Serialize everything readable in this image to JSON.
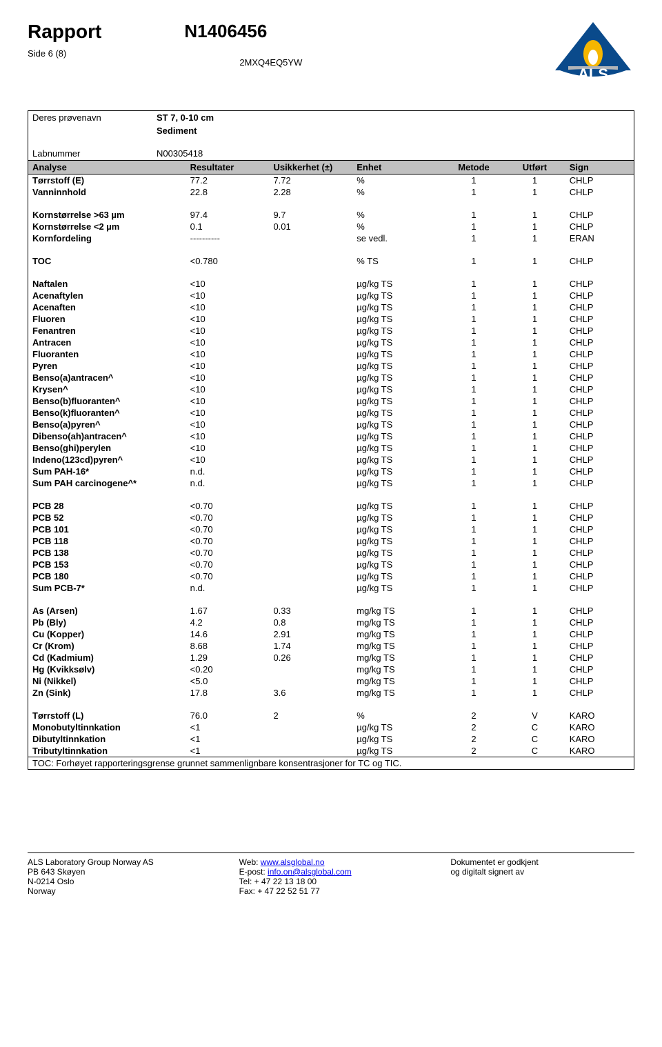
{
  "header": {
    "title": "Rapport",
    "page_info": "Side 6 (8)",
    "report_no": "N1406456",
    "ref_code": "2MXQ4EQ5YW"
  },
  "logo": {
    "name": "ALS",
    "triangle_color": "#0a4a8b",
    "flame_outer": "#f5b600",
    "flame_inner": "#ffffff",
    "text_color": "#0a4a8b"
  },
  "meta": {
    "sample_name_label": "Deres prøvenavn",
    "sample_name_value": "ST 7, 0-10 cm",
    "matrix_value": "Sediment",
    "labno_label": "Labnummer",
    "labno_value": "N00305418"
  },
  "columns": {
    "analyse": "Analyse",
    "resultater": "Resultater",
    "usikkerhet": "Usikkerhet (±)",
    "enhet": "Enhet",
    "metode": "Metode",
    "utfort": "Utført",
    "sign": "Sign"
  },
  "groups": [
    {
      "rows": [
        {
          "param": "Tørrstoff (E)",
          "result": "77.2",
          "uncert": "7.72",
          "unit": "%",
          "method": "1",
          "utfort": "1",
          "sign": "CHLP"
        },
        {
          "param": "Vanninnhold",
          "result": "22.8",
          "uncert": "2.28",
          "unit": "%",
          "method": "1",
          "utfort": "1",
          "sign": "CHLP"
        }
      ]
    },
    {
      "rows": [
        {
          "param": "Kornstørrelse >63 µm",
          "result": "97.4",
          "uncert": "9.7",
          "unit": "%",
          "method": "1",
          "utfort": "1",
          "sign": "CHLP"
        },
        {
          "param": "Kornstørrelse <2 µm",
          "result": "0.1",
          "uncert": "0.01",
          "unit": "%",
          "method": "1",
          "utfort": "1",
          "sign": "CHLP"
        },
        {
          "param": "Kornfordeling",
          "result": "----------",
          "uncert": "",
          "unit": "se vedl.",
          "method": "1",
          "utfort": "1",
          "sign": "ERAN"
        }
      ]
    },
    {
      "rows": [
        {
          "param": "TOC",
          "result": "<0.780",
          "uncert": "",
          "unit": "% TS",
          "method": "1",
          "utfort": "1",
          "sign": "CHLP"
        }
      ]
    },
    {
      "rows": [
        {
          "param": "Naftalen",
          "result": "<10",
          "uncert": "",
          "unit": "µg/kg TS",
          "method": "1",
          "utfort": "1",
          "sign": "CHLP"
        },
        {
          "param": "Acenaftylen",
          "result": "<10",
          "uncert": "",
          "unit": "µg/kg TS",
          "method": "1",
          "utfort": "1",
          "sign": "CHLP"
        },
        {
          "param": "Acenaften",
          "result": "<10",
          "uncert": "",
          "unit": "µg/kg TS",
          "method": "1",
          "utfort": "1",
          "sign": "CHLP"
        },
        {
          "param": "Fluoren",
          "result": "<10",
          "uncert": "",
          "unit": "µg/kg TS",
          "method": "1",
          "utfort": "1",
          "sign": "CHLP"
        },
        {
          "param": "Fenantren",
          "result": "<10",
          "uncert": "",
          "unit": "µg/kg TS",
          "method": "1",
          "utfort": "1",
          "sign": "CHLP"
        },
        {
          "param": "Antracen",
          "result": "<10",
          "uncert": "",
          "unit": "µg/kg TS",
          "method": "1",
          "utfort": "1",
          "sign": "CHLP"
        },
        {
          "param": "Fluoranten",
          "result": "<10",
          "uncert": "",
          "unit": "µg/kg TS",
          "method": "1",
          "utfort": "1",
          "sign": "CHLP"
        },
        {
          "param": "Pyren",
          "result": "<10",
          "uncert": "",
          "unit": "µg/kg TS",
          "method": "1",
          "utfort": "1",
          "sign": "CHLP"
        },
        {
          "param": "Benso(a)antracen^",
          "result": "<10",
          "uncert": "",
          "unit": "µg/kg TS",
          "method": "1",
          "utfort": "1",
          "sign": "CHLP"
        },
        {
          "param": "Krysen^",
          "result": "<10",
          "uncert": "",
          "unit": "µg/kg TS",
          "method": "1",
          "utfort": "1",
          "sign": "CHLP"
        },
        {
          "param": "Benso(b)fluoranten^",
          "result": "<10",
          "uncert": "",
          "unit": "µg/kg TS",
          "method": "1",
          "utfort": "1",
          "sign": "CHLP"
        },
        {
          "param": "Benso(k)fluoranten^",
          "result": "<10",
          "uncert": "",
          "unit": "µg/kg TS",
          "method": "1",
          "utfort": "1",
          "sign": "CHLP"
        },
        {
          "param": "Benso(a)pyren^",
          "result": "<10",
          "uncert": "",
          "unit": "µg/kg TS",
          "method": "1",
          "utfort": "1",
          "sign": "CHLP"
        },
        {
          "param": "Dibenso(ah)antracen^",
          "result": "<10",
          "uncert": "",
          "unit": "µg/kg TS",
          "method": "1",
          "utfort": "1",
          "sign": "CHLP"
        },
        {
          "param": "Benso(ghi)perylen",
          "result": "<10",
          "uncert": "",
          "unit": "µg/kg TS",
          "method": "1",
          "utfort": "1",
          "sign": "CHLP"
        },
        {
          "param": "Indeno(123cd)pyren^",
          "result": "<10",
          "uncert": "",
          "unit": "µg/kg TS",
          "method": "1",
          "utfort": "1",
          "sign": "CHLP"
        },
        {
          "param": "Sum PAH-16*",
          "result": "n.d.",
          "uncert": "",
          "unit": "µg/kg TS",
          "method": "1",
          "utfort": "1",
          "sign": "CHLP"
        },
        {
          "param": "Sum PAH carcinogene^*",
          "result": "n.d.",
          "uncert": "",
          "unit": "µg/kg TS",
          "method": "1",
          "utfort": "1",
          "sign": "CHLP"
        }
      ]
    },
    {
      "rows": [
        {
          "param": "PCB 28",
          "result": "<0.70",
          "uncert": "",
          "unit": "µg/kg TS",
          "method": "1",
          "utfort": "1",
          "sign": "CHLP"
        },
        {
          "param": "PCB 52",
          "result": "<0.70",
          "uncert": "",
          "unit": "µg/kg TS",
          "method": "1",
          "utfort": "1",
          "sign": "CHLP"
        },
        {
          "param": "PCB 101",
          "result": "<0.70",
          "uncert": "",
          "unit": "µg/kg TS",
          "method": "1",
          "utfort": "1",
          "sign": "CHLP"
        },
        {
          "param": "PCB 118",
          "result": "<0.70",
          "uncert": "",
          "unit": "µg/kg TS",
          "method": "1",
          "utfort": "1",
          "sign": "CHLP"
        },
        {
          "param": "PCB 138",
          "result": "<0.70",
          "uncert": "",
          "unit": "µg/kg TS",
          "method": "1",
          "utfort": "1",
          "sign": "CHLP"
        },
        {
          "param": "PCB 153",
          "result": "<0.70",
          "uncert": "",
          "unit": "µg/kg TS",
          "method": "1",
          "utfort": "1",
          "sign": "CHLP"
        },
        {
          "param": "PCB 180",
          "result": "<0.70",
          "uncert": "",
          "unit": "µg/kg TS",
          "method": "1",
          "utfort": "1",
          "sign": "CHLP"
        },
        {
          "param": "Sum PCB-7*",
          "result": "n.d.",
          "uncert": "",
          "unit": "µg/kg TS",
          "method": "1",
          "utfort": "1",
          "sign": "CHLP"
        }
      ]
    },
    {
      "rows": [
        {
          "param": "As (Arsen)",
          "result": "1.67",
          "uncert": "0.33",
          "unit": "mg/kg TS",
          "method": "1",
          "utfort": "1",
          "sign": "CHLP"
        },
        {
          "param": "Pb (Bly)",
          "result": "4.2",
          "uncert": "0.8",
          "unit": "mg/kg TS",
          "method": "1",
          "utfort": "1",
          "sign": "CHLP"
        },
        {
          "param": "Cu (Kopper)",
          "result": "14.6",
          "uncert": "2.91",
          "unit": "mg/kg TS",
          "method": "1",
          "utfort": "1",
          "sign": "CHLP"
        },
        {
          "param": "Cr (Krom)",
          "result": "8.68",
          "uncert": "1.74",
          "unit": "mg/kg TS",
          "method": "1",
          "utfort": "1",
          "sign": "CHLP"
        },
        {
          "param": "Cd (Kadmium)",
          "result": "1.29",
          "uncert": "0.26",
          "unit": "mg/kg TS",
          "method": "1",
          "utfort": "1",
          "sign": "CHLP"
        },
        {
          "param": "Hg (Kvikksølv)",
          "result": "<0.20",
          "uncert": "",
          "unit": "mg/kg TS",
          "method": "1",
          "utfort": "1",
          "sign": "CHLP"
        },
        {
          "param": "Ni (Nikkel)",
          "result": "<5.0",
          "uncert": "",
          "unit": "mg/kg TS",
          "method": "1",
          "utfort": "1",
          "sign": "CHLP"
        },
        {
          "param": "Zn (Sink)",
          "result": "17.8",
          "uncert": "3.6",
          "unit": "mg/kg TS",
          "method": "1",
          "utfort": "1",
          "sign": "CHLP"
        }
      ]
    },
    {
      "rows": [
        {
          "param": "Tørrstoff (L)",
          "result": "76.0",
          "uncert": "2",
          "unit": "%",
          "method": "2",
          "utfort": "V",
          "sign": "KARO"
        },
        {
          "param": "Monobutyltinnkation",
          "result": "<1",
          "uncert": "",
          "unit": "µg/kg TS",
          "method": "2",
          "utfort": "C",
          "sign": "KARO"
        },
        {
          "param": "Dibutyltinnkation",
          "result": "<1",
          "uncert": "",
          "unit": "µg/kg TS",
          "method": "2",
          "utfort": "C",
          "sign": "KARO"
        },
        {
          "param": "Tributyltinnkation",
          "result": "<1",
          "uncert": "",
          "unit": "µg/kg TS",
          "method": "2",
          "utfort": "C",
          "sign": "KARO"
        }
      ]
    }
  ],
  "footnote": "TOC:  Forhøyet rapporteringsgrense grunnet sammenlignbare konsentrasjoner for TC og TIC.",
  "footer": {
    "col1": {
      "l1": "ALS Laboratory Group Norway AS",
      "l2": "PB 643 Skøyen",
      "l3": "N-0214 Oslo",
      "l4": "Norway"
    },
    "col2": {
      "l1_pre": "Web: ",
      "l1_link": "www.alsglobal.no",
      "l2_pre": "E-post:  ",
      "l2_link": "info.on@alsglobal.com",
      "l3": "Tel: + 47 22 13 18 00",
      "l4": "Fax: + 47 22 52 51 77"
    },
    "col3": {
      "l1": "Dokumentet er godkjent",
      "l2": "og digitalt signert av"
    }
  }
}
